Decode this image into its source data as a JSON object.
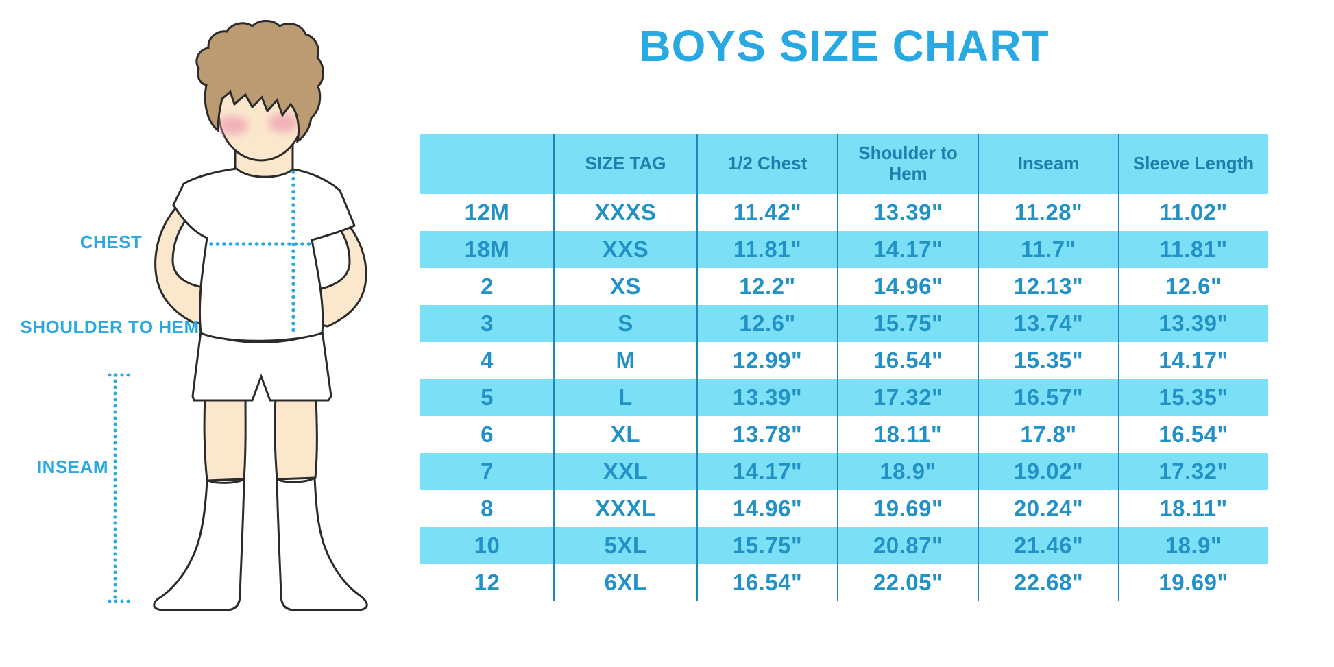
{
  "chart_data": {
    "type": "table",
    "title": "BOYS SIZE CHART",
    "columns": [
      "",
      "SIZE TAG",
      "1/2 Chest",
      "Shoulder to Hem",
      "Inseam",
      "Sleeve Length"
    ],
    "rows": [
      [
        "12M",
        "XXXS",
        "11.42\"",
        "13.39\"",
        "11.28\"",
        "11.02\""
      ],
      [
        "18M",
        "XXS",
        "11.81\"",
        "14.17\"",
        "11.7\"",
        "11.81\""
      ],
      [
        "2",
        "XS",
        "12.2\"",
        "14.96\"",
        "12.13\"",
        "12.6\""
      ],
      [
        "3",
        "S",
        "12.6\"",
        "15.75\"",
        "13.74\"",
        "13.39\""
      ],
      [
        "4",
        "M",
        "12.99\"",
        "16.54\"",
        "15.35\"",
        "14.17\""
      ],
      [
        "5",
        "L",
        "13.39\"",
        "17.32\"",
        "16.57\"",
        "15.35\""
      ],
      [
        "6",
        "XL",
        "13.78\"",
        "18.11\"",
        "17.8\"",
        "16.54\""
      ],
      [
        "7",
        "XXL",
        "14.17\"",
        "18.9\"",
        "19.02\"",
        "17.32\""
      ],
      [
        "8",
        "XXXL",
        "14.96\"",
        "19.69\"",
        "20.24\"",
        "18.11\""
      ],
      [
        "10",
        "5XL",
        "15.75\"",
        "20.87\"",
        "21.46\"",
        "18.9\""
      ],
      [
        "12",
        "6XL",
        "16.54\"",
        "22.05\"",
        "22.68\"",
        "19.69\""
      ]
    ],
    "layout": {
      "header_fill": "cyan",
      "row_striping": "alternating white/cyan starting with white under header",
      "grid": "vertical column dividers only, no outer border"
    }
  },
  "figure": {
    "description": "cartoon boy in white t-shirt, shorts and socks with dotted measurement guides",
    "chest_label": "CHEST",
    "shoulder_to_hem_label": "SHOULDER TO HEM",
    "inseam_label": "INSEAM"
  },
  "colors": {
    "accent_blue": "#29A9E1",
    "table_fill_cyan": "#7BDFF6",
    "header_text": "#1D7FAD",
    "cell_text": "#2191C6",
    "divider": "#1E86B8",
    "skin": "#FBE8CC",
    "hair": "#BD9B72",
    "blush": "#EE9FB2",
    "outline": "#2B2B2B"
  }
}
